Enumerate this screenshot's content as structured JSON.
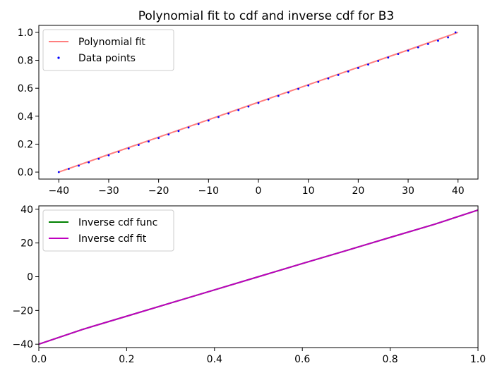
{
  "chart_data": [
    {
      "type": "line",
      "title": "Polynomial fit to cdf and inverse cdf for B3",
      "xlabel": "",
      "ylabel": "",
      "xlim": [
        -44,
        44
      ],
      "ylim": [
        -0.05,
        1.05
      ],
      "x_ticks": [
        -40,
        -30,
        -20,
        -10,
        0,
        10,
        20,
        30,
        40
      ],
      "x_tick_labels": [
        "−40",
        "−30",
        "−20",
        "−10",
        "0",
        "10",
        "20",
        "30",
        "40"
      ],
      "y_ticks": [
        0.0,
        0.2,
        0.4,
        0.6,
        0.8,
        1.0
      ],
      "y_tick_labels": [
        "0.0",
        "0.2",
        "0.4",
        "0.6",
        "0.8",
        "1.0"
      ],
      "grid": false,
      "legend": "upper-left",
      "series": [
        {
          "name": "Polynomial fit",
          "style": "line",
          "color": "#ff7f7f",
          "x": [
            -40,
            -30,
            -20,
            -10,
            0,
            10,
            20,
            30,
            40
          ],
          "y": [
            0.0,
            0.126,
            0.25,
            0.375,
            0.5,
            0.625,
            0.75,
            0.874,
            1.0
          ]
        },
        {
          "name": "Data points",
          "style": "points",
          "color": "#0000ff",
          "x": [
            -40,
            -38,
            -36,
            -34,
            -32,
            -30,
            -28,
            -26,
            -24,
            -22,
            -20,
            -18,
            -16,
            -14,
            -12,
            -10,
            -8,
            -6,
            -4,
            -2,
            0,
            2,
            4,
            6,
            8,
            10,
            12,
            14,
            16,
            18,
            20,
            22,
            24,
            26,
            28,
            30,
            32,
            34,
            36,
            38,
            39.5
          ],
          "y": [
            0.0,
            0.023,
            0.046,
            0.07,
            0.095,
            0.12,
            0.144,
            0.169,
            0.194,
            0.219,
            0.244,
            0.269,
            0.294,
            0.319,
            0.344,
            0.369,
            0.394,
            0.419,
            0.444,
            0.469,
            0.495,
            0.52,
            0.545,
            0.57,
            0.595,
            0.62,
            0.645,
            0.67,
            0.695,
            0.72,
            0.745,
            0.77,
            0.795,
            0.82,
            0.845,
            0.869,
            0.893,
            0.917,
            0.94,
            0.964,
            1.0
          ]
        }
      ]
    },
    {
      "type": "line",
      "title": "",
      "xlabel": "",
      "ylabel": "",
      "xlim": [
        0.0,
        1.0
      ],
      "ylim": [
        -42,
        42
      ],
      "x_ticks": [
        0.0,
        0.2,
        0.4,
        0.6,
        0.8,
        1.0
      ],
      "x_tick_labels": [
        "0.0",
        "0.2",
        "0.4",
        "0.6",
        "0.8",
        "1.0"
      ],
      "y_ticks": [
        -40,
        -20,
        0,
        20,
        40
      ],
      "y_tick_labels": [
        "−40",
        "−20",
        "0",
        "20",
        "40"
      ],
      "grid": false,
      "legend": "upper-left",
      "series": [
        {
          "name": "Inverse cdf func",
          "style": "line",
          "color": "#008000",
          "x": [
            0.0,
            0.1,
            0.2,
            0.3,
            0.4,
            0.5,
            0.6,
            0.7,
            0.8,
            0.9,
            1.0
          ],
          "y": [
            -40,
            -31.2,
            -23.4,
            -15.6,
            -7.8,
            0,
            7.8,
            15.5,
            23.3,
            31.0,
            39.5
          ]
        },
        {
          "name": "Inverse cdf fit",
          "style": "line",
          "color": "#bf00bf",
          "x": [
            0.0,
            0.1,
            0.2,
            0.3,
            0.4,
            0.5,
            0.6,
            0.7,
            0.8,
            0.9,
            1.0
          ],
          "y": [
            -40,
            -31.2,
            -23.4,
            -15.6,
            -7.8,
            0,
            7.8,
            15.5,
            23.3,
            31.0,
            39.5
          ]
        }
      ]
    }
  ]
}
